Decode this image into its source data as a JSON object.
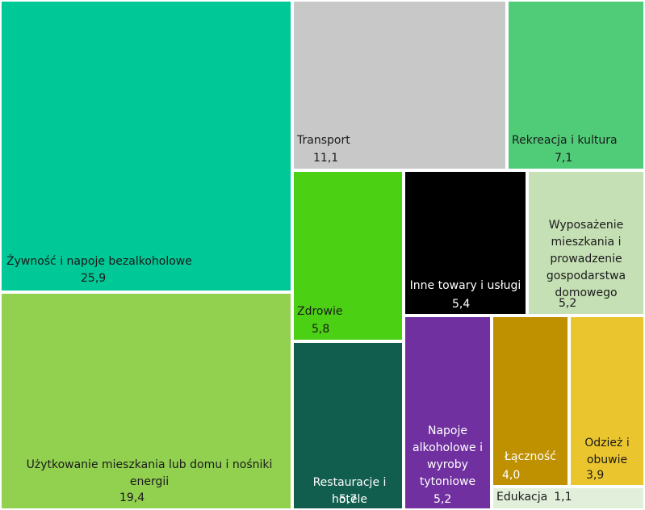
{
  "chart_data": {
    "type": "treemap",
    "items": [
      {
        "label": "Żywność i napoje bezalkoholowe",
        "value": "25,9",
        "color": "#00C896"
      },
      {
        "label": "Użytkowanie mieszkania lub domu i nośniki energii",
        "value": "19,4",
        "color": "#92D050"
      },
      {
        "label": "Transport",
        "value": "11,1",
        "color": "#C8C8C8"
      },
      {
        "label": "Rekreacja i kultura",
        "value": "7,1",
        "color": "#50CC78"
      },
      {
        "label": "Zdrowie",
        "value": "5,8",
        "color": "#4CD014"
      },
      {
        "label": "Restauracje i hotele",
        "value": "5,7",
        "color": "#125E4E"
      },
      {
        "label": "Inne towary i usługi",
        "value": "5,4",
        "color": "#000000"
      },
      {
        "label": "Wyposażenie mieszkania i prowadzenie gospodarstwa domowego",
        "value": "5,2",
        "color": "#C5E0B4"
      },
      {
        "label": "Napoje alkoholowe i wyroby tytoniowe",
        "value": "5,2",
        "color": "#7030A0"
      },
      {
        "label": "Łączność",
        "value": "4,0",
        "color": "#BF9000"
      },
      {
        "label": "Odzież i obuwie",
        "value": "3,9",
        "color": "#EBC52E"
      },
      {
        "label": "Edukacja",
        "value": "1,1",
        "color": "#E2EFDA"
      }
    ]
  }
}
